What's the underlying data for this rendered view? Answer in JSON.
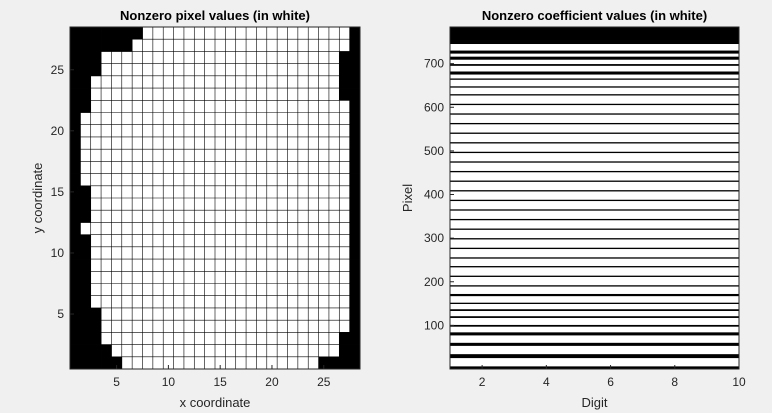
{
  "chart_data": [
    {
      "type": "heatmap",
      "title": "Nonzero pixel values (in white)",
      "xlabel": "x coordinate",
      "ylabel": "y coordinate",
      "xlim": [
        1,
        28
      ],
      "ylim": [
        1,
        28
      ],
      "xticks": [
        5,
        10,
        15,
        20,
        25
      ],
      "yticks": [
        5,
        10,
        15,
        20,
        25
      ],
      "grid": true,
      "colors": {
        "zero": "#000000",
        "nonzero": "#ffffff",
        "gridline": "#000000"
      },
      "rows_top_to_bottom": [
        [
          1,
          7
        ],
        [
          1,
          4,
          6
        ],
        [
          1,
          3
        ],
        [
          1,
          3
        ],
        [
          1,
          2
        ],
        [
          1,
          2
        ],
        [
          1,
          2
        ],
        [
          1
        ],
        [
          1
        ],
        [
          1
        ],
        [
          1
        ],
        [
          1
        ],
        [
          1
        ],
        [
          1,
          2
        ],
        [
          1,
          2
        ],
        [
          1,
          2
        ],
        [
          1
        ],
        [
          1,
          2
        ],
        [
          1,
          2
        ],
        [
          1,
          2
        ],
        [
          1,
          2
        ],
        [
          1,
          2
        ],
        [
          1,
          2
        ],
        [
          1,
          3
        ],
        [
          1,
          3
        ],
        [
          1,
          3
        ],
        [
          1,
          4
        ],
        [
          1,
          5
        ]
      ],
      "rows_top_to_bottom_right_black_count": [
        1,
        1,
        2,
        2,
        2,
        2,
        1,
        1,
        1,
        1,
        1,
        1,
        1,
        1,
        1,
        1,
        1,
        1,
        1,
        1,
        1,
        1,
        1,
        1,
        1,
        2,
        2,
        4
      ]
    },
    {
      "type": "heatmap",
      "title": "Nonzero coefficient values (in white)",
      "xlabel": "Digit",
      "ylabel": "Pixel",
      "xlim": [
        1,
        10
      ],
      "ylim": [
        1,
        784
      ],
      "xticks": [
        2,
        4,
        6,
        8,
        10
      ],
      "yticks": [
        100,
        200,
        300,
        400,
        500,
        600,
        700
      ],
      "colors": {
        "zero": "#000000",
        "nonzero": "#ffffff"
      },
      "zero_pixel_ranges": [
        [
          1,
          6
        ],
        [
          26,
          34
        ],
        [
          54,
          60
        ],
        [
          78,
          84
        ],
        [
          98,
          101
        ],
        [
          118,
          121
        ],
        [
          134,
          137
        ],
        [
          150,
          152
        ],
        [
          168,
          172
        ],
        [
          190,
          192
        ],
        [
          212,
          214
        ],
        [
          234,
          236
        ],
        [
          254,
          256
        ],
        [
          276,
          278
        ],
        [
          298,
          300
        ],
        [
          320,
          322
        ],
        [
          342,
          344
        ],
        [
          364,
          366
        ],
        [
          386,
          388
        ],
        [
          408,
          410
        ],
        [
          430,
          432
        ],
        [
          452,
          454
        ],
        [
          474,
          476
        ],
        [
          496,
          498
        ],
        [
          518,
          520
        ],
        [
          540,
          542
        ],
        [
          562,
          564
        ],
        [
          584,
          586
        ],
        [
          606,
          608
        ],
        [
          628,
          630
        ],
        [
          646,
          648
        ],
        [
          664,
          666
        ],
        [
          676,
          682
        ],
        [
          696,
          699
        ],
        [
          710,
          716
        ],
        [
          724,
          730
        ],
        [
          746,
          784
        ]
      ]
    }
  ]
}
